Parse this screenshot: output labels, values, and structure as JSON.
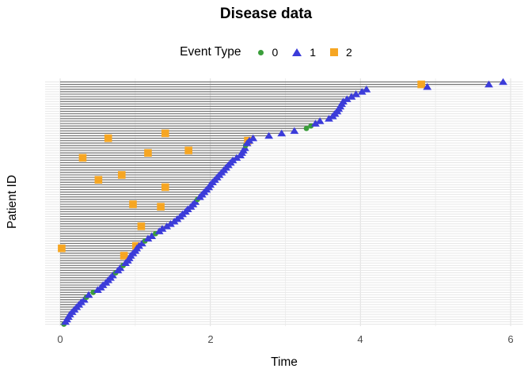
{
  "title": "Disease data",
  "legend": {
    "title": "Event Type",
    "entries": [
      {
        "label": "0",
        "marker": "circle",
        "color": "#3a9e3a"
      },
      {
        "label": "1",
        "marker": "triangle",
        "color": "#3c3cd9"
      },
      {
        "label": "2",
        "marker": "square",
        "color": "#f6a623"
      }
    ]
  },
  "axes": {
    "x_label": "Time",
    "y_label": "Patient ID",
    "x_ticks": [
      "0",
      "2",
      "4",
      "6"
    ]
  },
  "chart_data": {
    "type": "scatter",
    "subtype": "patient-event-timeline",
    "title": "Disease data",
    "xlabel": "Time",
    "ylabel": "Patient ID",
    "xlim": [
      0,
      6
    ],
    "x_major_ticks": [
      0,
      2,
      4,
      6
    ],
    "x_minor_ticks": [
      1,
      3,
      5
    ],
    "grid": "light gray; one horizontal gridline per patient row",
    "legend_position": "top",
    "n_patients": 100,
    "encoding": "Each patient (row, bottom=1 to top=100, sorted by follow-up time) has a gray segment from time 0 to end_times[row-1]; the segment ends with event type 1 (blue triangle) unless the row is in censored_rows, then event type 0 (green circle); type2_events (orange squares) are additional events placed along the rows at the given times.",
    "end_times": [
      0.05,
      0.07,
      0.09,
      0.11,
      0.13,
      0.16,
      0.19,
      0.22,
      0.25,
      0.28,
      0.32,
      0.35,
      0.38,
      0.44,
      0.5,
      0.54,
      0.57,
      0.61,
      0.64,
      0.67,
      0.7,
      0.74,
      0.77,
      0.8,
      0.84,
      0.87,
      0.9,
      0.92,
      0.94,
      0.97,
      1.0,
      1.02,
      1.05,
      1.09,
      1.13,
      1.17,
      1.22,
      1.27,
      1.32,
      1.36,
      1.42,
      1.47,
      1.52,
      1.56,
      1.6,
      1.63,
      1.67,
      1.7,
      1.74,
      1.77,
      1.8,
      1.83,
      1.86,
      1.89,
      1.92,
      1.95,
      1.98,
      2.0,
      2.03,
      2.06,
      2.09,
      2.12,
      2.15,
      2.18,
      2.21,
      2.24,
      2.27,
      2.3,
      2.35,
      2.4,
      2.42,
      2.44,
      2.46,
      2.47,
      2.49,
      2.52,
      2.57,
      2.78,
      2.95,
      3.12,
      3.28,
      3.34,
      3.4,
      3.46,
      3.58,
      3.63,
      3.66,
      3.69,
      3.71,
      3.73,
      3.75,
      3.77,
      3.82,
      3.88,
      3.94,
      4.02,
      4.08,
      4.89,
      5.71,
      5.9
    ],
    "censored_rows": [
      1,
      12,
      14,
      22,
      25,
      35,
      38,
      52,
      74,
      81,
      82
    ],
    "type2_events": [
      {
        "row": 69,
        "time": 0.3
      },
      {
        "row": 77,
        "time": 0.64
      },
      {
        "row": 79,
        "time": 1.4
      },
      {
        "row": 72,
        "time": 1.71
      },
      {
        "row": 71,
        "time": 1.17
      },
      {
        "row": 60,
        "time": 0.51
      },
      {
        "row": 62,
        "time": 0.82
      },
      {
        "row": 57,
        "time": 1.4
      },
      {
        "row": 50,
        "time": 0.97
      },
      {
        "row": 49,
        "time": 1.34
      },
      {
        "row": 41,
        "time": 1.08
      },
      {
        "row": 32,
        "time": 0.02
      },
      {
        "row": 33,
        "time": 1.01
      },
      {
        "row": 29,
        "time": 0.85
      },
      {
        "row": 76,
        "time": 2.5
      },
      {
        "row": 99,
        "time": 4.81
      }
    ],
    "colors": {
      "event0": "#3a9e3a",
      "event1": "#3c3cd9",
      "event2": "#f6a623",
      "segment": "#757575",
      "row_gridline": "#e7e7e7",
      "major_gridline": "#e2e2e2",
      "minor_gridline": "#f0f0f0",
      "tick_label": "#4d4d4d"
    }
  }
}
